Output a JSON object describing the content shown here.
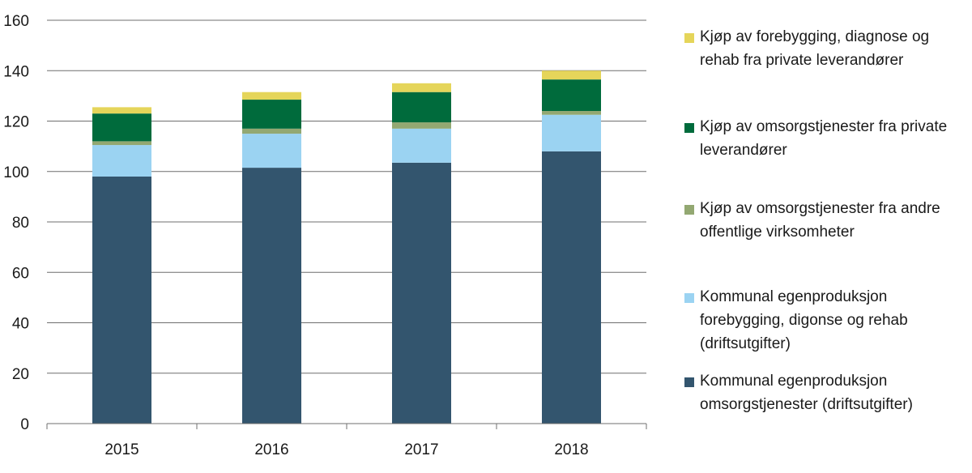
{
  "chart_data": {
    "type": "bar",
    "stacked": true,
    "categories": [
      "2015",
      "2016",
      "2017",
      "2018"
    ],
    "ylim": [
      0,
      160
    ],
    "yticks": [
      0,
      20,
      40,
      60,
      80,
      100,
      120,
      140,
      160
    ],
    "grid": true,
    "legend_position": "right",
    "series": [
      {
        "name": "Kommunal egenproduksjon omsorgstjenester  (driftsutgifter)",
        "color": "#33556e",
        "values": [
          98,
          101.5,
          103.5,
          108
        ]
      },
      {
        "name": "Kommunal egenproduksjon forebygging, digonse og rehab (driftsutgifter)",
        "color": "#9bd3f2",
        "values": [
          12.5,
          13.5,
          13.5,
          14.5
        ]
      },
      {
        "name": "Kjøp av omsorgstjenester fra andre offentlige virksomheter",
        "color": "#93a872",
        "values": [
          1.5,
          2,
          2.5,
          1.5
        ]
      },
      {
        "name": "Kjøp av omsorgstjenester fra private leverandører",
        "color": "#006b3c",
        "values": [
          11,
          11.5,
          12,
          12.5
        ]
      },
      {
        "name": "Kjøp av forebygging, diagnose og rehab fra private leverandører",
        "color": "#e5d55a",
        "values": [
          2.5,
          3,
          3.5,
          3.5
        ]
      }
    ]
  }
}
